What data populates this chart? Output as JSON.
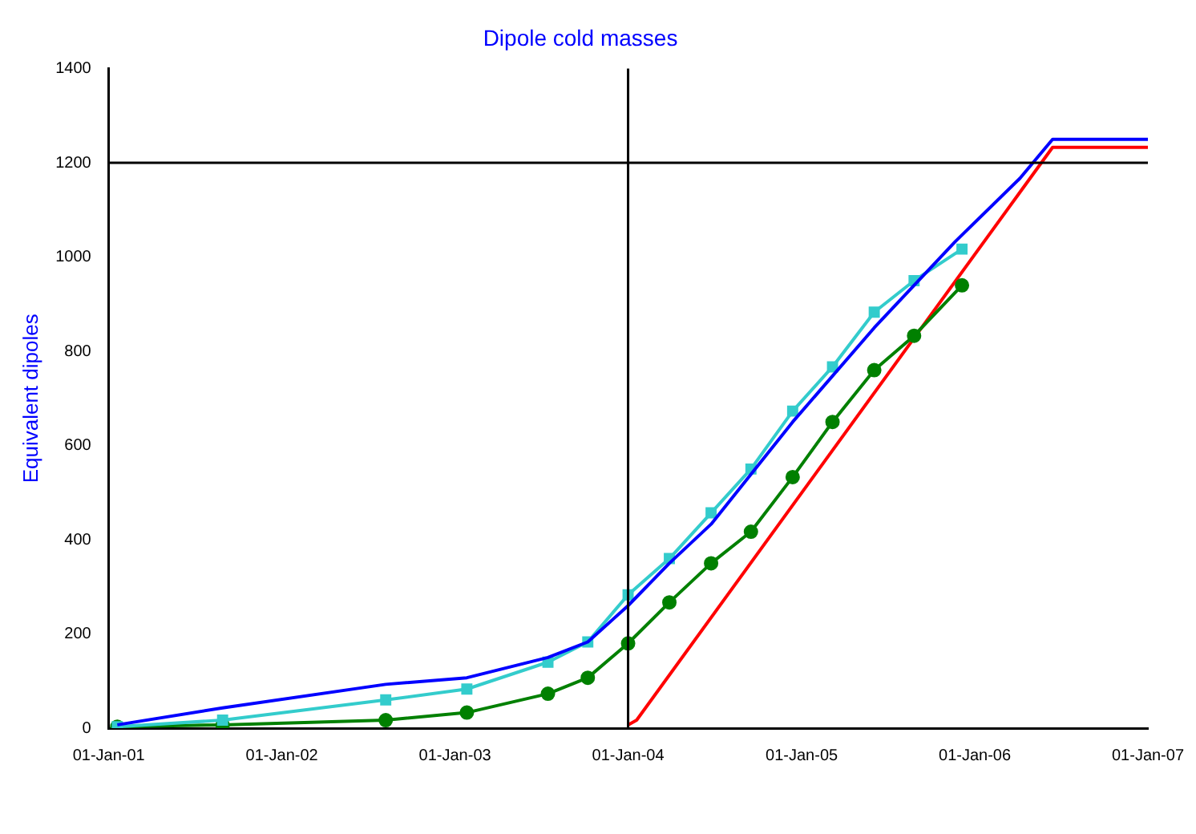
{
  "chart_data": {
    "type": "line",
    "title": "Dipole cold masses",
    "ylabel": "Equivalent dipoles",
    "xlim": [
      "2001-01-01",
      "2007-01-01"
    ],
    "xticks": [
      {
        "value": "2001-01-01",
        "label": "01-Jan-01"
      },
      {
        "value": "2002-01-01",
        "label": "01-Jan-02"
      },
      {
        "value": "2003-01-01",
        "label": "01-Jan-03"
      },
      {
        "value": "2004-01-01",
        "label": "01-Jan-04"
      },
      {
        "value": "2005-01-01",
        "label": "01-Jan-05"
      },
      {
        "value": "2006-01-01",
        "label": "01-Jan-06"
      },
      {
        "value": "2007-01-01",
        "label": "01-Jan-07"
      }
    ],
    "ylim": [
      0,
      1400
    ],
    "yticks": [
      0,
      200,
      400,
      600,
      800,
      1000,
      1200,
      1400
    ],
    "grid": false,
    "legend": false,
    "line_style": "solid",
    "ref_lines": [
      {
        "axis": "x",
        "value": "2004-01-01",
        "color": "#000000"
      },
      {
        "axis": "y",
        "value": 1200,
        "color": "#000000"
      }
    ],
    "series": [
      {
        "color": "#0000ff",
        "marker": "none",
        "x": [
          "2001-01-19",
          "2001-08-29",
          "2002-08-08",
          "2003-01-26",
          "2003-07-16",
          "2003-10-08",
          "2004-01-01",
          "2004-03-28",
          "2004-06-24",
          "2004-12-13",
          "2005-06-03",
          "2005-11-21",
          "2006-04-06",
          "2006-06-14",
          "2007-01-01"
        ],
        "values": [
          7,
          43,
          93,
          107,
          150,
          183,
          260,
          350,
          433,
          650,
          850,
          1033,
          1167,
          1250,
          1250
        ]
      },
      {
        "color": "#33cccc",
        "marker": "square",
        "x": [
          "2001-01-19",
          "2001-08-29",
          "2002-08-08",
          "2003-01-26",
          "2003-07-16",
          "2003-10-08",
          "2004-01-01",
          "2004-03-28",
          "2004-06-24",
          "2004-09-16",
          "2004-12-13",
          "2005-03-07",
          "2005-06-03",
          "2005-08-26",
          "2005-12-05"
        ],
        "values": [
          3,
          17,
          60,
          83,
          140,
          183,
          283,
          360,
          457,
          550,
          673,
          767,
          883,
          950,
          1017
        ]
      },
      {
        "color": "#008000",
        "marker": "circle",
        "x": [
          "2001-01-19",
          "2001-08-29",
          "2002-08-08",
          "2003-01-26",
          "2003-07-16",
          "2003-10-08",
          "2004-01-01",
          "2004-03-28",
          "2004-06-24",
          "2004-09-16",
          "2004-12-13",
          "2005-03-07",
          "2005-06-03",
          "2005-08-26",
          "2005-12-05"
        ],
        "values": [
          3,
          7,
          17,
          33,
          73,
          107,
          180,
          267,
          350,
          417,
          533,
          650,
          760,
          833,
          940
        ]
      },
      {
        "color": "#ff0000",
        "marker": "none",
        "x": [
          "2004-01-01",
          "2004-01-19",
          "2006-06-14",
          "2007-01-01"
        ],
        "values": [
          7,
          17,
          1233,
          1233
        ]
      }
    ]
  }
}
